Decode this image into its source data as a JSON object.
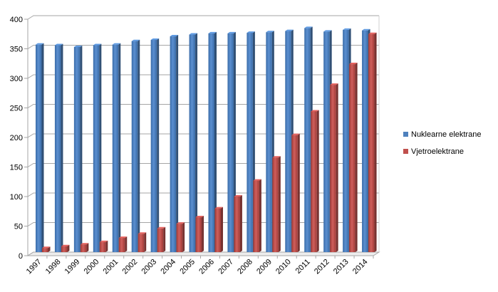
{
  "chart_data": {
    "type": "bar",
    "title": "",
    "xlabel": "",
    "ylabel": "",
    "categories": [
      "1997",
      "1998",
      "1999",
      "2000",
      "2001",
      "2002",
      "2003",
      "2004",
      "2005",
      "2006",
      "2007",
      "2008",
      "2009",
      "2010",
      "2011",
      "2012",
      "2013",
      "2014"
    ],
    "series": [
      {
        "name": "Nuklearne elektrane",
        "color": "#4F81BD",
        "values": [
          351,
          350,
          347,
          350,
          351,
          357,
          359,
          365,
          368,
          370,
          370,
          371,
          372,
          374,
          379,
          373,
          376,
          375
        ]
      },
      {
        "name": "Vjetroelektrane",
        "color": "#C0504D",
        "values": [
          7,
          10,
          13,
          17,
          24,
          31,
          40,
          48,
          59,
          74,
          94,
          121,
          160,
          198,
          238,
          283,
          318,
          369
        ]
      }
    ],
    "ylim": [
      0,
      400
    ],
    "yticks": [
      0,
      50,
      100,
      150,
      200,
      250,
      300,
      350,
      400
    ],
    "grid": true,
    "legend_position": "right",
    "style": "3d-clustered-column"
  }
}
